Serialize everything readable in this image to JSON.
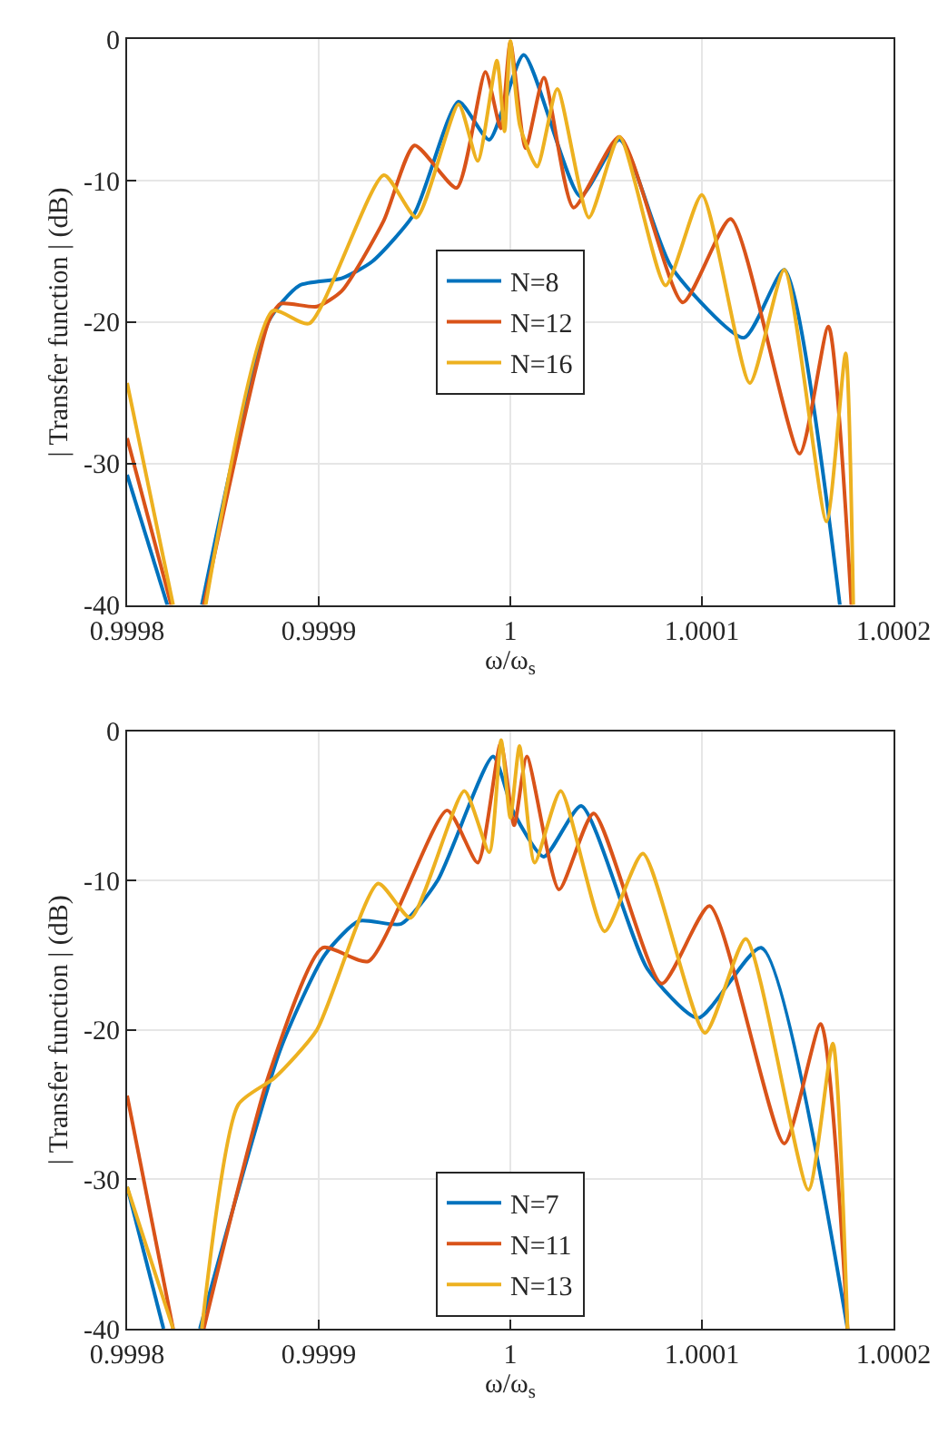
{
  "chart_data": [
    {
      "type": "line",
      "xlabel": "ω/ω$_{s}$",
      "ylabel": "| Transfer function | (dB)",
      "xlim": [
        0.9998,
        1.0002
      ],
      "xticks": [
        0.9998,
        0.9999,
        1,
        1.0001,
        1.0002
      ],
      "ylim": [
        -40,
        0
      ],
      "yticks": [
        -40,
        -30,
        -20,
        -10,
        0
      ],
      "grid": true,
      "legend": "center",
      "line_style": "solid",
      "marker": "none",
      "series": [
        {
          "name": "N=8",
          "color": "#0072bd",
          "x": [
            0.9998,
            0.999821,
            0.99983,
            0.999839,
            0.999874,
            0.99989,
            0.999912,
            0.999928,
            0.99995,
            0.999973,
            0.999989,
            1.000007,
            1.0000365,
            1.000057,
            1.000084,
            1.000122,
            1.000143,
            1.000172
          ],
          "values": [
            -30.8,
            -40,
            null,
            -40,
            -19.9,
            -17.4,
            -16.9,
            -15.7,
            -12.3,
            -4.4,
            -7.1,
            -1.1,
            -11.1,
            -7.1,
            -16.1,
            -21.1,
            -16.3,
            -40
          ]
        },
        {
          "name": "N=12",
          "color": "#d95319",
          "x": [
            0.9998,
            0.999823,
            0.99983,
            0.99984,
            0.999874,
            0.99988,
            0.999899,
            0.999912,
            0.999934,
            0.99995,
            0.999972,
            0.999987,
            0.999995,
            1.0,
            1.000008,
            1.0000175,
            1.000033,
            1.000057,
            1.00009,
            1.000115,
            1.000151,
            1.000166,
            1.000178
          ],
          "values": [
            -28.2,
            -40,
            null,
            -40,
            -19.9,
            -18.7,
            -18.9,
            -17.8,
            -12.8,
            -7.5,
            -10.5,
            -2.3,
            -6.3,
            -0.2,
            -7.7,
            -2.7,
            -11.9,
            -6.9,
            -18.6,
            -12.7,
            -29.3,
            -20.3,
            -40
          ]
        },
        {
          "name": "N=16",
          "color": "#edb120",
          "x": [
            0.9998,
            0.999824,
            0.99983,
            0.999841,
            0.999876,
            0.999895,
            0.999934,
            0.999951,
            0.999973,
            0.999983,
            0.999993,
            0.999997,
            1.0,
            1.000005,
            1.000014,
            1.0000245,
            1.000041,
            1.000057,
            1.000081,
            1.0001,
            1.000125,
            1.000143,
            1.000165,
            1.000175,
            1.000179
          ],
          "values": [
            -24.3,
            -40,
            null,
            -40,
            -19.2,
            -20.1,
            -9.6,
            -12.6,
            -4.6,
            -8.6,
            -1.5,
            -6.5,
            -0.1,
            -6.1,
            -9.0,
            -3.5,
            -12.6,
            -6.9,
            -17.4,
            -11.0,
            -24.3,
            -16.3,
            -34.1,
            -22.2,
            -40
          ]
        }
      ]
    },
    {
      "type": "line",
      "xlabel": "ω/ω$_{s}$",
      "ylabel": "| Transfer function | (dB)",
      "xlim": [
        0.9998,
        1.0002
      ],
      "xticks": [
        0.9998,
        0.9999,
        1,
        1.0001,
        1.0002
      ],
      "ylim": [
        -40,
        0
      ],
      "yticks": [
        -40,
        -30,
        -20,
        -10,
        0
      ],
      "grid": true,
      "legend": "bottom",
      "line_style": "solid",
      "marker": "none",
      "series": [
        {
          "name": "N=7",
          "color": "#0072bd",
          "x": [
            0.9998,
            0.999819,
            0.99983,
            0.999838,
            0.99988,
            0.999903,
            0.999921,
            0.999943,
            0.999962,
            0.999991,
            1.0000016,
            1.0000175,
            1.000037,
            1.0000715,
            1.000098,
            1.000131,
            1.000176
          ],
          "values": [
            -30.5,
            -40,
            null,
            -40,
            -21.3,
            -15.0,
            -12.7,
            -12.9,
            -10.0,
            -1.7,
            -5.4,
            -8.4,
            -5.0,
            -15.9,
            -19.2,
            -14.5,
            -40
          ]
        },
        {
          "name": "N=11",
          "color": "#d95319",
          "x": [
            0.9998,
            0.999824,
            0.99983,
            0.99984,
            0.999874,
            0.999902,
            0.999926,
            0.999967,
            0.999983,
            0.999995,
            1.000002,
            1.0000086,
            1.0000254,
            1.0000435,
            1.000079,
            1.000104,
            1.000143,
            1.000162,
            1.000176
          ],
          "values": [
            -24.4,
            -40,
            null,
            -40,
            -23.0,
            -14.5,
            -15.4,
            -5.3,
            -8.8,
            -0.8,
            -6.3,
            -1.7,
            -10.6,
            -5.5,
            -16.9,
            -11.7,
            -27.6,
            -19.6,
            -40
          ]
        },
        {
          "name": "N=13",
          "color": "#edb120",
          "x": [
            0.9998,
            0.999824,
            0.99983,
            0.999839,
            0.999858,
            0.999877,
            0.999899,
            0.999931,
            0.999948,
            0.999976,
            0.999989,
            0.9999952,
            1.0,
            1.0000048,
            1.0000127,
            1.0000263,
            1.0000492,
            1.0000692,
            1.0001016,
            1.0001229,
            1.0001556,
            1.0001683,
            1.000176
          ],
          "values": [
            -30.5,
            -40,
            null,
            -40,
            -25.0,
            -23.2,
            -20.0,
            -10.2,
            -12.5,
            -4.0,
            -8.1,
            -0.6,
            -5.8,
            -1.0,
            -8.8,
            -4.0,
            -13.4,
            -8.2,
            -20.2,
            -13.9,
            -30.7,
            -20.9,
            -40
          ]
        }
      ]
    }
  ]
}
